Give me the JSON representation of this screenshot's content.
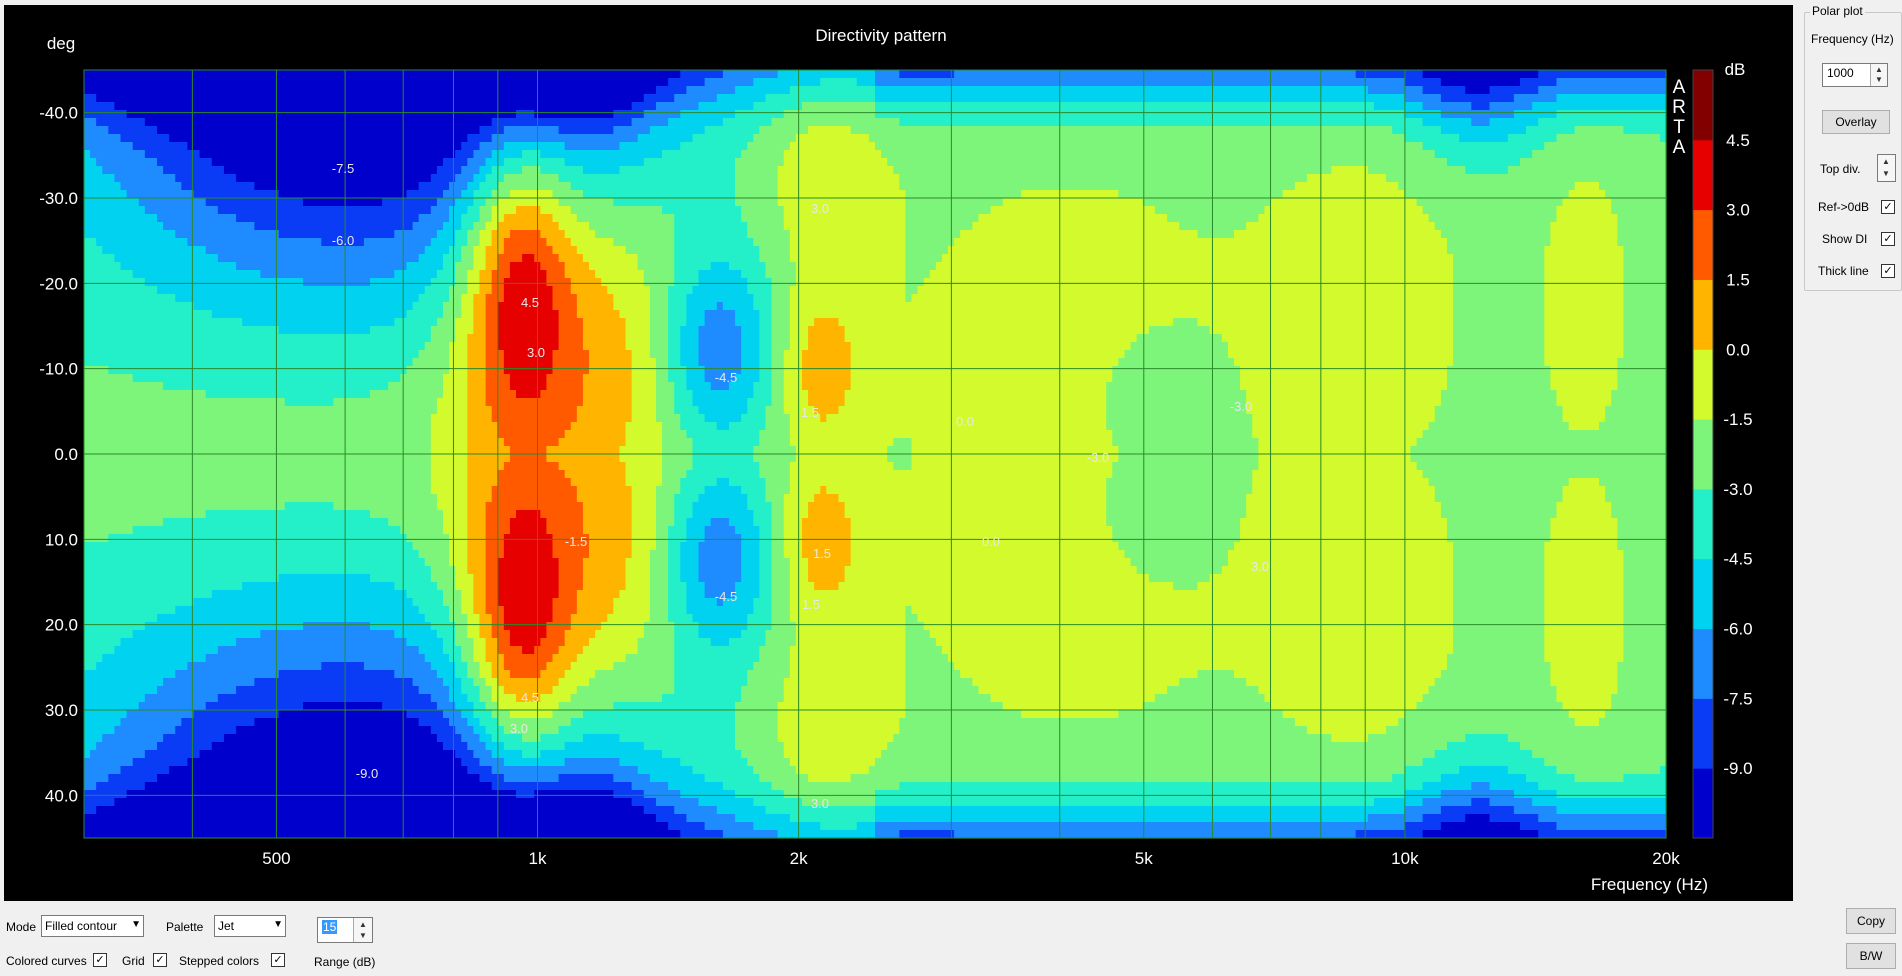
{
  "chart_data": {
    "type": "heatmap",
    "title": "Directivity pattern",
    "xlabel": "Frequency (Hz)",
    "ylabel": "deg",
    "x_scale": "log",
    "xlim": [
      300,
      20000
    ],
    "ylim": [
      -45,
      45
    ],
    "x_ticks": [
      500,
      1000,
      2000,
      5000,
      10000,
      20000
    ],
    "x_tick_labels": [
      "500",
      "1k",
      "2k",
      "5k",
      "10k",
      "20k"
    ],
    "y_tick_labels": [
      "-40.0",
      "-30.0",
      "-20.0",
      "-10.0",
      "0.0",
      "10.0",
      "20.0",
      "30.0",
      "40.0"
    ],
    "y_ticks": [
      -40,
      -30,
      -20,
      -10,
      0,
      10,
      20,
      30,
      40
    ],
    "grid": true,
    "colorbar": {
      "title": "dB",
      "tick_labels": [
        "4.5",
        "3.0",
        "1.5",
        "0.0",
        "-1.5",
        "-3.0",
        "-4.5",
        "-6.0",
        "-7.5",
        "-9.0"
      ],
      "levels": [
        -9.0,
        -7.5,
        -6.0,
        -4.5,
        -3.0,
        -1.5,
        0.0,
        1.5,
        3.0,
        4.5,
        6.0
      ],
      "colors": [
        "#0000cd",
        "#0a3cf5",
        "#1e8cff",
        "#00d2f0",
        "#23f0c8",
        "#7df57a",
        "#d2fa2d",
        "#ffb400",
        "#ff5a00",
        "#e60000",
        "#820000"
      ]
    },
    "watermark": "ARTA",
    "contour_labels": [
      "-7.5",
      "-6.0",
      "-9.0",
      "4.5",
      "3.0",
      "4.5",
      "3.0",
      "-4.5",
      "-4.5",
      "1.5",
      "1.5",
      "-1.5",
      "3.0",
      "3.0",
      "0.0",
      "0.0",
      "-3.0",
      "1.5",
      "-3.0",
      "3.0"
    ]
  },
  "side_panel": {
    "group_title": "Polar plot",
    "frequency_label": "Frequency (Hz)",
    "frequency_value": "1000",
    "overlay_label": "Overlay",
    "top_div_label": "Top div.",
    "ref_label": "Ref->0dB",
    "ref_checked": "✓",
    "show_di_label": "Show DI",
    "show_di_checked": "✓",
    "thick_line_label": "Thick line",
    "thick_line_checked": "✓"
  },
  "bottom_bar": {
    "mode_label": "Mode",
    "mode_value": "Filled contour",
    "palette_label": "Palette",
    "palette_value": "Jet",
    "range_value": "15",
    "range_label": "Range (dB)",
    "colored_curves_label": "Colored curves",
    "colored_curves_checked": "✓",
    "grid_label": "Grid",
    "grid_checked": "✓",
    "stepped_colors_label": "Stepped colors",
    "stepped_colors_checked": "✓",
    "copy_label": "Copy",
    "bw_label": "B/W"
  }
}
